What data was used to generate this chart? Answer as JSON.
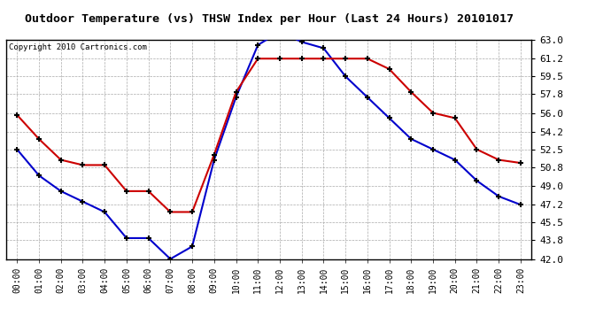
{
  "title": "Outdoor Temperature (vs) THSW Index per Hour (Last 24 Hours) 20101017",
  "copyright": "Copyright 2010 Cartronics.com",
  "hours": [
    "00:00",
    "01:00",
    "02:00",
    "03:00",
    "04:00",
    "05:00",
    "06:00",
    "07:00",
    "08:00",
    "09:00",
    "10:00",
    "11:00",
    "12:00",
    "13:00",
    "14:00",
    "15:00",
    "16:00",
    "17:00",
    "18:00",
    "19:00",
    "20:00",
    "21:00",
    "22:00",
    "23:00"
  ],
  "temp_blue": [
    52.5,
    50.0,
    48.5,
    47.5,
    46.5,
    44.0,
    44.0,
    42.0,
    43.2,
    51.5,
    57.5,
    62.5,
    63.8,
    62.8,
    62.2,
    59.5,
    57.5,
    55.5,
    53.5,
    52.5,
    51.5,
    49.5,
    48.0,
    47.2
  ],
  "thsw_red": [
    55.8,
    53.5,
    51.5,
    51.0,
    51.0,
    48.5,
    48.5,
    46.5,
    46.5,
    52.0,
    58.0,
    61.2,
    61.2,
    61.2,
    61.2,
    61.2,
    61.2,
    60.2,
    58.0,
    56.0,
    55.5,
    52.5,
    51.5,
    51.2
  ],
  "ylim": [
    42.0,
    63.0
  ],
  "yticks": [
    42.0,
    43.8,
    45.5,
    47.2,
    49.0,
    50.8,
    52.5,
    54.2,
    56.0,
    57.8,
    59.5,
    61.2,
    63.0
  ],
  "bg_color": "#FFFFFF",
  "plot_bg_color": "#FFFFFF",
  "grid_color": "#AAAAAA",
  "blue_color": "#0000CC",
  "red_color": "#CC0000",
  "title_fontsize": 9.5,
  "copyright_fontsize": 6.5
}
